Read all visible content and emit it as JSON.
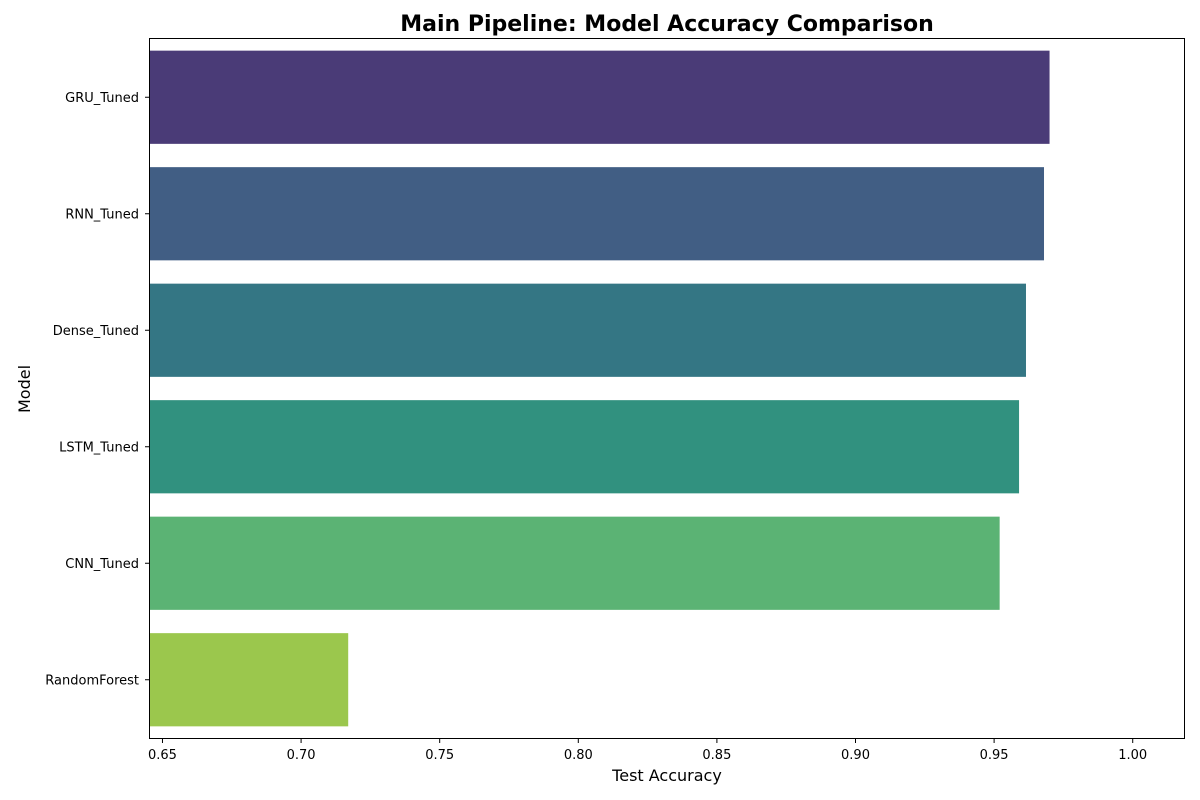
{
  "chart_data": {
    "type": "bar",
    "orientation": "horizontal",
    "title": "Main Pipeline: Model Accuracy Comparison",
    "xlabel": "Test Accuracy",
    "ylabel": "Model",
    "categories": [
      "GRU_Tuned",
      "RNN_Tuned",
      "Dense_Tuned",
      "LSTM_Tuned",
      "CNN_Tuned",
      "RandomForest"
    ],
    "values": [
      0.97,
      0.968,
      0.9615,
      0.959,
      0.952,
      0.717
    ],
    "colors": [
      "#4a3b77",
      "#415e84",
      "#347684",
      "#31917f",
      "#5bb374",
      "#9bc74d"
    ],
    "xlim": [
      0.6455,
      1.0185
    ],
    "xticks": [
      0.65,
      0.7,
      0.75,
      0.8,
      0.85,
      0.9,
      0.95,
      1.0
    ],
    "xtick_labels": [
      "0.65",
      "0.70",
      "0.75",
      "0.80",
      "0.85",
      "0.90",
      "0.95",
      "1.00"
    ],
    "grid": false,
    "legend": "none"
  }
}
